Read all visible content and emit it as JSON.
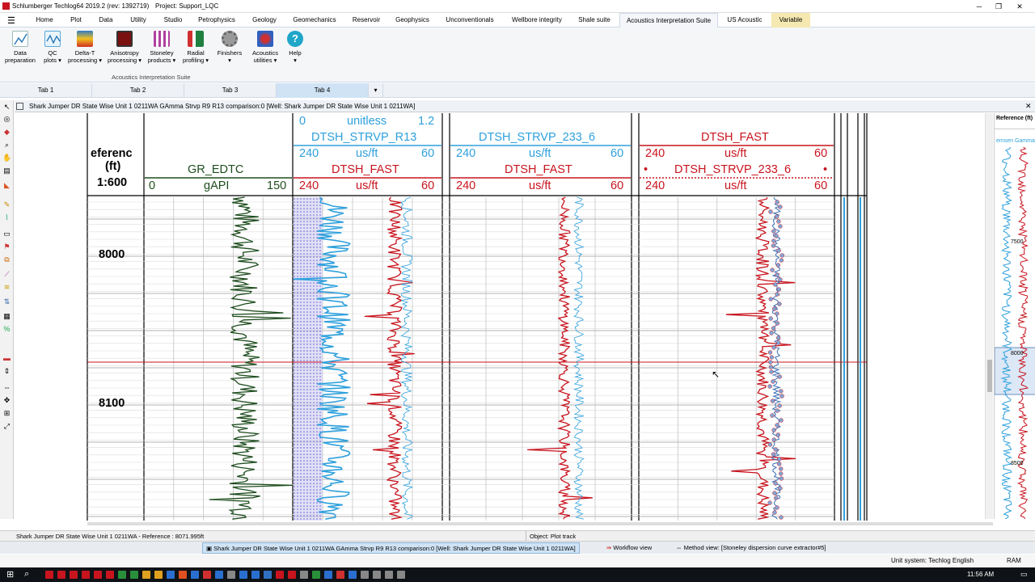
{
  "window": {
    "title": "Schlumberger Techlog64 2019.2 (rev: 1392719)",
    "project": "Project: Support_LQC"
  },
  "menu": [
    "Home",
    "Plot",
    "Data",
    "Utility",
    "Studio",
    "Petrophysics",
    "Geology",
    "Geomechanics",
    "Reservoir",
    "Geophysics",
    "Unconventionals",
    "Wellbore integrity",
    "Shale suite",
    "Acoustics Interpretation Suite",
    "US Acoustic",
    "Variable"
  ],
  "ribbon": {
    "group_label": "Acoustics Interpretation Suite",
    "buttons": [
      {
        "line1": "Data",
        "line2": "preparation",
        "icon": "data-preparation-icon"
      },
      {
        "line1": "QC",
        "line2": "plots ▾",
        "icon": "qc-plots-icon"
      },
      {
        "line1": "Delta-T",
        "line2": "processing ▾",
        "icon": "delta-t-icon"
      },
      {
        "line1": "Anisotropy",
        "line2": "processing ▾",
        "icon": "anisotropy-icon"
      },
      {
        "line1": "Stoneley",
        "line2": "products ▾",
        "icon": "stoneley-icon"
      },
      {
        "line1": "Radial",
        "line2": "profiling ▾",
        "icon": "radial-icon"
      },
      {
        "line1": "Finishers",
        "line2": "▾",
        "icon": "gear-icon"
      },
      {
        "line1": "Acoustics",
        "line2": "utilities ▾",
        "icon": "utilities-icon"
      },
      {
        "line1": "Help",
        "line2": "▾",
        "icon": "help-icon"
      }
    ]
  },
  "tabs": [
    "Tab 1",
    "Tab 2",
    "Tab 3",
    "Tab 4"
  ],
  "plot_title": "Shark Jumper DR State Wise Unit 1 0211WA GAmma Strvp R9 R13 comparison:0 [Well: Shark Jumper DR State Wise Unit 1 0211WA]",
  "depth_track": {
    "title_line1": "eferenc",
    "title_line2": "(ft)",
    "scale": "1:600",
    "depths": [
      "8000",
      "8100"
    ]
  },
  "tracks": {
    "gr": {
      "name": "GR_EDTC",
      "min": "0",
      "unit": "gAPI",
      "max": "150"
    },
    "t2": {
      "c1_min": "0",
      "c1_unit": "unitless",
      "c1_max": "1.2",
      "c2_name": "DTSH_STRVP_R13",
      "c2_min": "240",
      "c2_unit": "us/ft",
      "c2_max": "60",
      "c3_name": "DTSH_FAST",
      "c3_min": "240",
      "c3_unit": "us/ft",
      "c3_max": "60"
    },
    "t3": {
      "c1_name": "DTSH_STRVP_233_6",
      "c1_min": "240",
      "c1_unit": "us/ft",
      "c1_max": "60",
      "c2_name": "DTSH_FAST",
      "c2_min": "240",
      "c2_unit": "us/ft",
      "c2_max": "60"
    },
    "t4": {
      "c1_name": "DTSH_FAST",
      "c1_min": "240",
      "c1_unit": "us/ft",
      "c1_max": "60",
      "c2_name": "DTSH_STRVP_233_6",
      "c2_min": "240",
      "c2_unit": "us/ft",
      "c2_max": "60"
    }
  },
  "right_panel": {
    "header": "Reference (ft)",
    "sub": "emsen Gamma",
    "depths": [
      "7500",
      "8000",
      "8500"
    ]
  },
  "status": {
    "left": "Shark Jumper DR State Wise Unit 1 0211WA - Reference : 8071.995ft",
    "right": "Object: Plot track"
  },
  "window_tabs": [
    "Shark Jumper DR State Wise Unit 1 0211WA GAmma Strvp R9 R13 comparison:0 [Well: Shark Jumper DR State Wise Unit 1 0211WA]",
    "Workflow view",
    "Method view: [Stoneley dispersion curve extractor#5]"
  ],
  "unit_system": "Unit system: Techlog English",
  "ram": "RAM",
  "clock": "11:56 AM",
  "colors": {
    "gr": "#1e4d1e",
    "blue": "#2ea0dc",
    "red": "#c8141e",
    "grid": "#cccccc",
    "accent": "#cfe3f5"
  }
}
